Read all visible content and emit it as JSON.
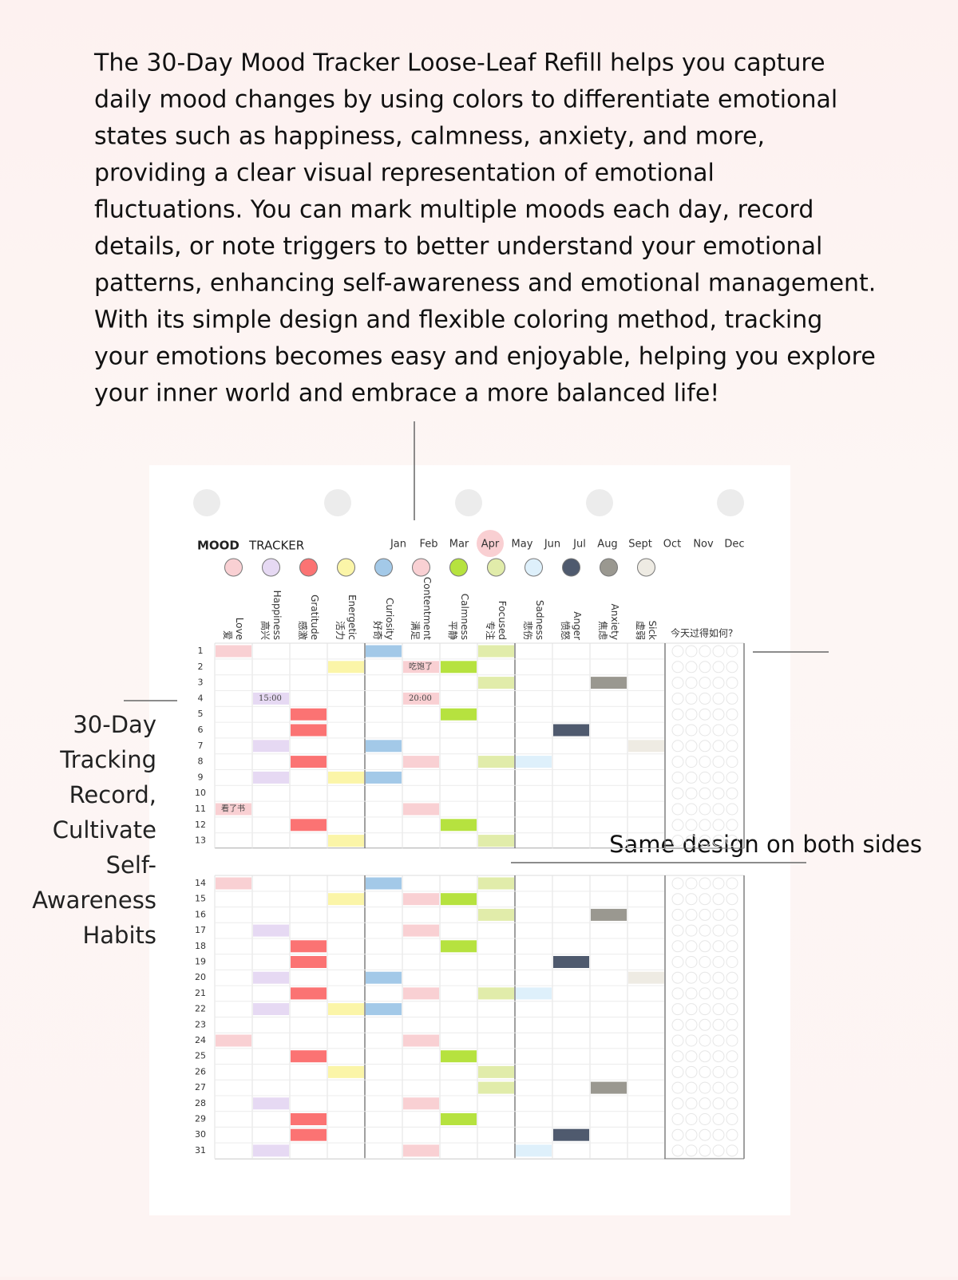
{
  "description": [
    "The 30-Day Mood Tracker Loose-Leaf Refill helps you capture",
    "daily mood changes by using colors to differentiate emotional",
    "states such as happiness, calmness, anxiety, and more,",
    "providing a clear visual representation of emotional",
    "fluctuations. You can mark multiple moods each day, record",
    "details, or note triggers to better understand your emotional",
    "patterns, enhancing self-awareness and emotional management.",
    "With its simple design and flexible coloring method, tracking",
    "your emotions becomes easy and enjoyable, helping you explore",
    "your inner world and embrace a more balanced life!"
  ],
  "side_caption": [
    "30-Day",
    "Tracking",
    "Record,",
    "Cultivate",
    "Self-",
    "Awareness",
    "Habits"
  ],
  "both_sides_caption": "Same design on both sides",
  "tracker": {
    "title_bold": "MOOD",
    "title": "TRACKER",
    "months": [
      "Jan",
      "Feb",
      "Mar",
      "Apr",
      "May",
      "Jun",
      "Jul",
      "Aug",
      "Sept",
      "Oct",
      "Nov",
      "Dec"
    ],
    "moods": [
      {
        "en": "Love",
        "zh": "爱",
        "color": "#f9d0d3"
      },
      {
        "en": "Happiness",
        "zh": "高兴",
        "color": "#e6d9f3"
      },
      {
        "en": "Gratitude",
        "zh": "感激",
        "color": "#fb7373"
      },
      {
        "en": "Energetic",
        "zh": "活力",
        "color": "#fbf5a8"
      },
      {
        "en": "Curiosity",
        "zh": "好奇",
        "color": "#a3c9e8"
      },
      {
        "en": "Contentment",
        "zh": "满足",
        "color": "#f9d0d3"
      },
      {
        "en": "Calmness",
        "zh": "平静",
        "color": "#b6e23f"
      },
      {
        "en": "Focused",
        "zh": "专注",
        "color": "#e1ecaa"
      },
      {
        "en": "Sadness",
        "zh": "悲伤",
        "color": "#def0fb"
      },
      {
        "en": "Anger",
        "zh": "愤怒",
        "color": "#4f5a6e"
      },
      {
        "en": "Anxiety",
        "zh": "焦虑",
        "color": "#9a9890"
      },
      {
        "en": "Sick",
        "zh": "虚弱",
        "color": "#eeebe3"
      }
    ],
    "days": [
      1,
      2,
      3,
      4,
      5,
      6,
      7,
      8,
      9,
      10,
      11,
      12,
      13,
      14,
      15,
      16,
      17,
      18,
      19,
      20,
      21,
      22,
      23,
      24,
      25,
      26,
      27,
      28,
      29,
      30,
      31
    ],
    "notes_header": "今天过得如何?",
    "notes": [
      "吃饱了",
      "15:00",
      "20:00",
      "看了书"
    ]
  }
}
